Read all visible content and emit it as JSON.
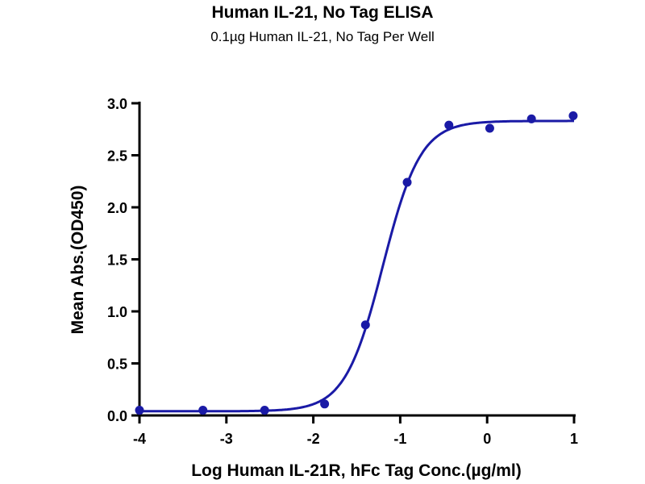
{
  "chart_data": {
    "type": "scatter",
    "title": "Human IL-21, No Tag ELISA",
    "subtitle": "0.1µg Human IL-21, No Tag Per Well",
    "xlabel": "Log Human IL-21R, hFc Tag Conc.(µg/ml)",
    "ylabel": "Mean Abs.(OD450)",
    "xlim": [
      -4,
      1
    ],
    "ylim": [
      0,
      3.0
    ],
    "xticks": [
      "-4",
      "-3",
      "-2",
      "-1",
      "0",
      "1"
    ],
    "yticks": [
      "0.0",
      "0.5",
      "1.0",
      "1.5",
      "2.0",
      "2.5",
      "3.0"
    ],
    "grid": false,
    "color": "#1a1aa6",
    "series": [
      {
        "name": "data",
        "x": [
          -4.0,
          -3.27,
          -2.56,
          -1.87,
          -1.4,
          -0.92,
          -0.44,
          0.03,
          0.51,
          0.99
        ],
        "y": [
          0.05,
          0.05,
          0.05,
          0.11,
          0.87,
          2.24,
          2.79,
          2.76,
          2.85,
          2.88
        ]
      }
    ],
    "fit": {
      "model": "4PL",
      "bottom": 0.04,
      "top": 2.83,
      "logEC50": -1.2,
      "hill": 2.0
    }
  }
}
